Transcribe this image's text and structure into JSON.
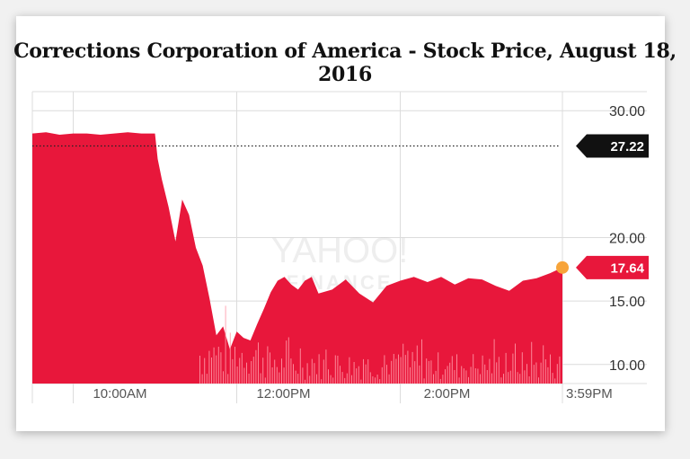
{
  "title": "Corrections Corporation of America - Stock Price, August 18, 2016",
  "watermark": {
    "line1": "YAHOO!",
    "line2": "FINANCE"
  },
  "colors": {
    "area": "#e8173b",
    "volume": "#ff9aa9",
    "previous_close_badge": "#111111",
    "last_price_badge": "#e8173b",
    "last_point_marker": "#f7a43a"
  },
  "chart_data": {
    "type": "area",
    "title": "Corrections Corporation of America - Stock Price, August 18, 2016",
    "xlabel": "",
    "ylabel": "",
    "ylim": [
      8.5,
      31.5
    ],
    "y_ticks": [
      "10.00",
      "15.00",
      "20.00",
      "30.00"
    ],
    "x_tick_labels": [
      "10:00AM",
      "12:00PM",
      "2:00PM",
      "3:59PM"
    ],
    "grid": true,
    "previous_close": {
      "value": 27.22,
      "label": "27.22"
    },
    "last_price": {
      "value": 17.64,
      "label": "17.64"
    },
    "series": [
      {
        "x": [
          "9:30AM",
          "9:40AM",
          "9:50AM",
          "10:00AM",
          "10:10AM",
          "10:20AM",
          "10:30AM",
          "10:40AM",
          "10:50AM",
          "11:00AM",
          "11:02AM",
          "11:05AM",
          "11:10AM",
          "11:15AM",
          "11:20AM",
          "11:25AM",
          "11:30AM",
          "11:35AM",
          "11:40AM",
          "11:45AM",
          "11:50AM",
          "11:55AM",
          "12:00PM",
          "12:05PM",
          "12:10PM",
          "12:15PM",
          "12:20PM",
          "12:25PM",
          "12:30PM",
          "12:35PM",
          "12:40PM",
          "12:45PM",
          "12:50PM",
          "12:55PM",
          "1:00PM",
          "1:10PM",
          "1:20PM",
          "1:30PM",
          "1:40PM",
          "1:50PM",
          "2:00PM",
          "2:10PM",
          "2:20PM",
          "2:30PM",
          "2:40PM",
          "2:50PM",
          "3:00PM",
          "3:10PM",
          "3:20PM",
          "3:30PM",
          "3:40PM",
          "3:50PM",
          "3:59PM"
        ],
        "values": [
          28.2,
          28.3,
          28.1,
          28.2,
          28.2,
          28.1,
          28.2,
          28.3,
          28.2,
          28.2,
          26.2,
          24.6,
          22.4,
          19.7,
          23.0,
          21.8,
          19.2,
          17.8,
          15.2,
          12.3,
          13.0,
          11.2,
          12.6,
          12.1,
          11.9,
          13.2,
          14.4,
          15.7,
          16.6,
          16.9,
          16.3,
          15.9,
          16.6,
          16.9,
          15.6,
          15.9,
          16.7,
          15.6,
          14.9,
          16.2,
          16.6,
          16.9,
          16.5,
          16.9,
          16.3,
          16.8,
          16.7,
          16.2,
          15.8,
          16.6,
          16.8,
          17.2,
          17.64
        ]
      }
    ]
  }
}
